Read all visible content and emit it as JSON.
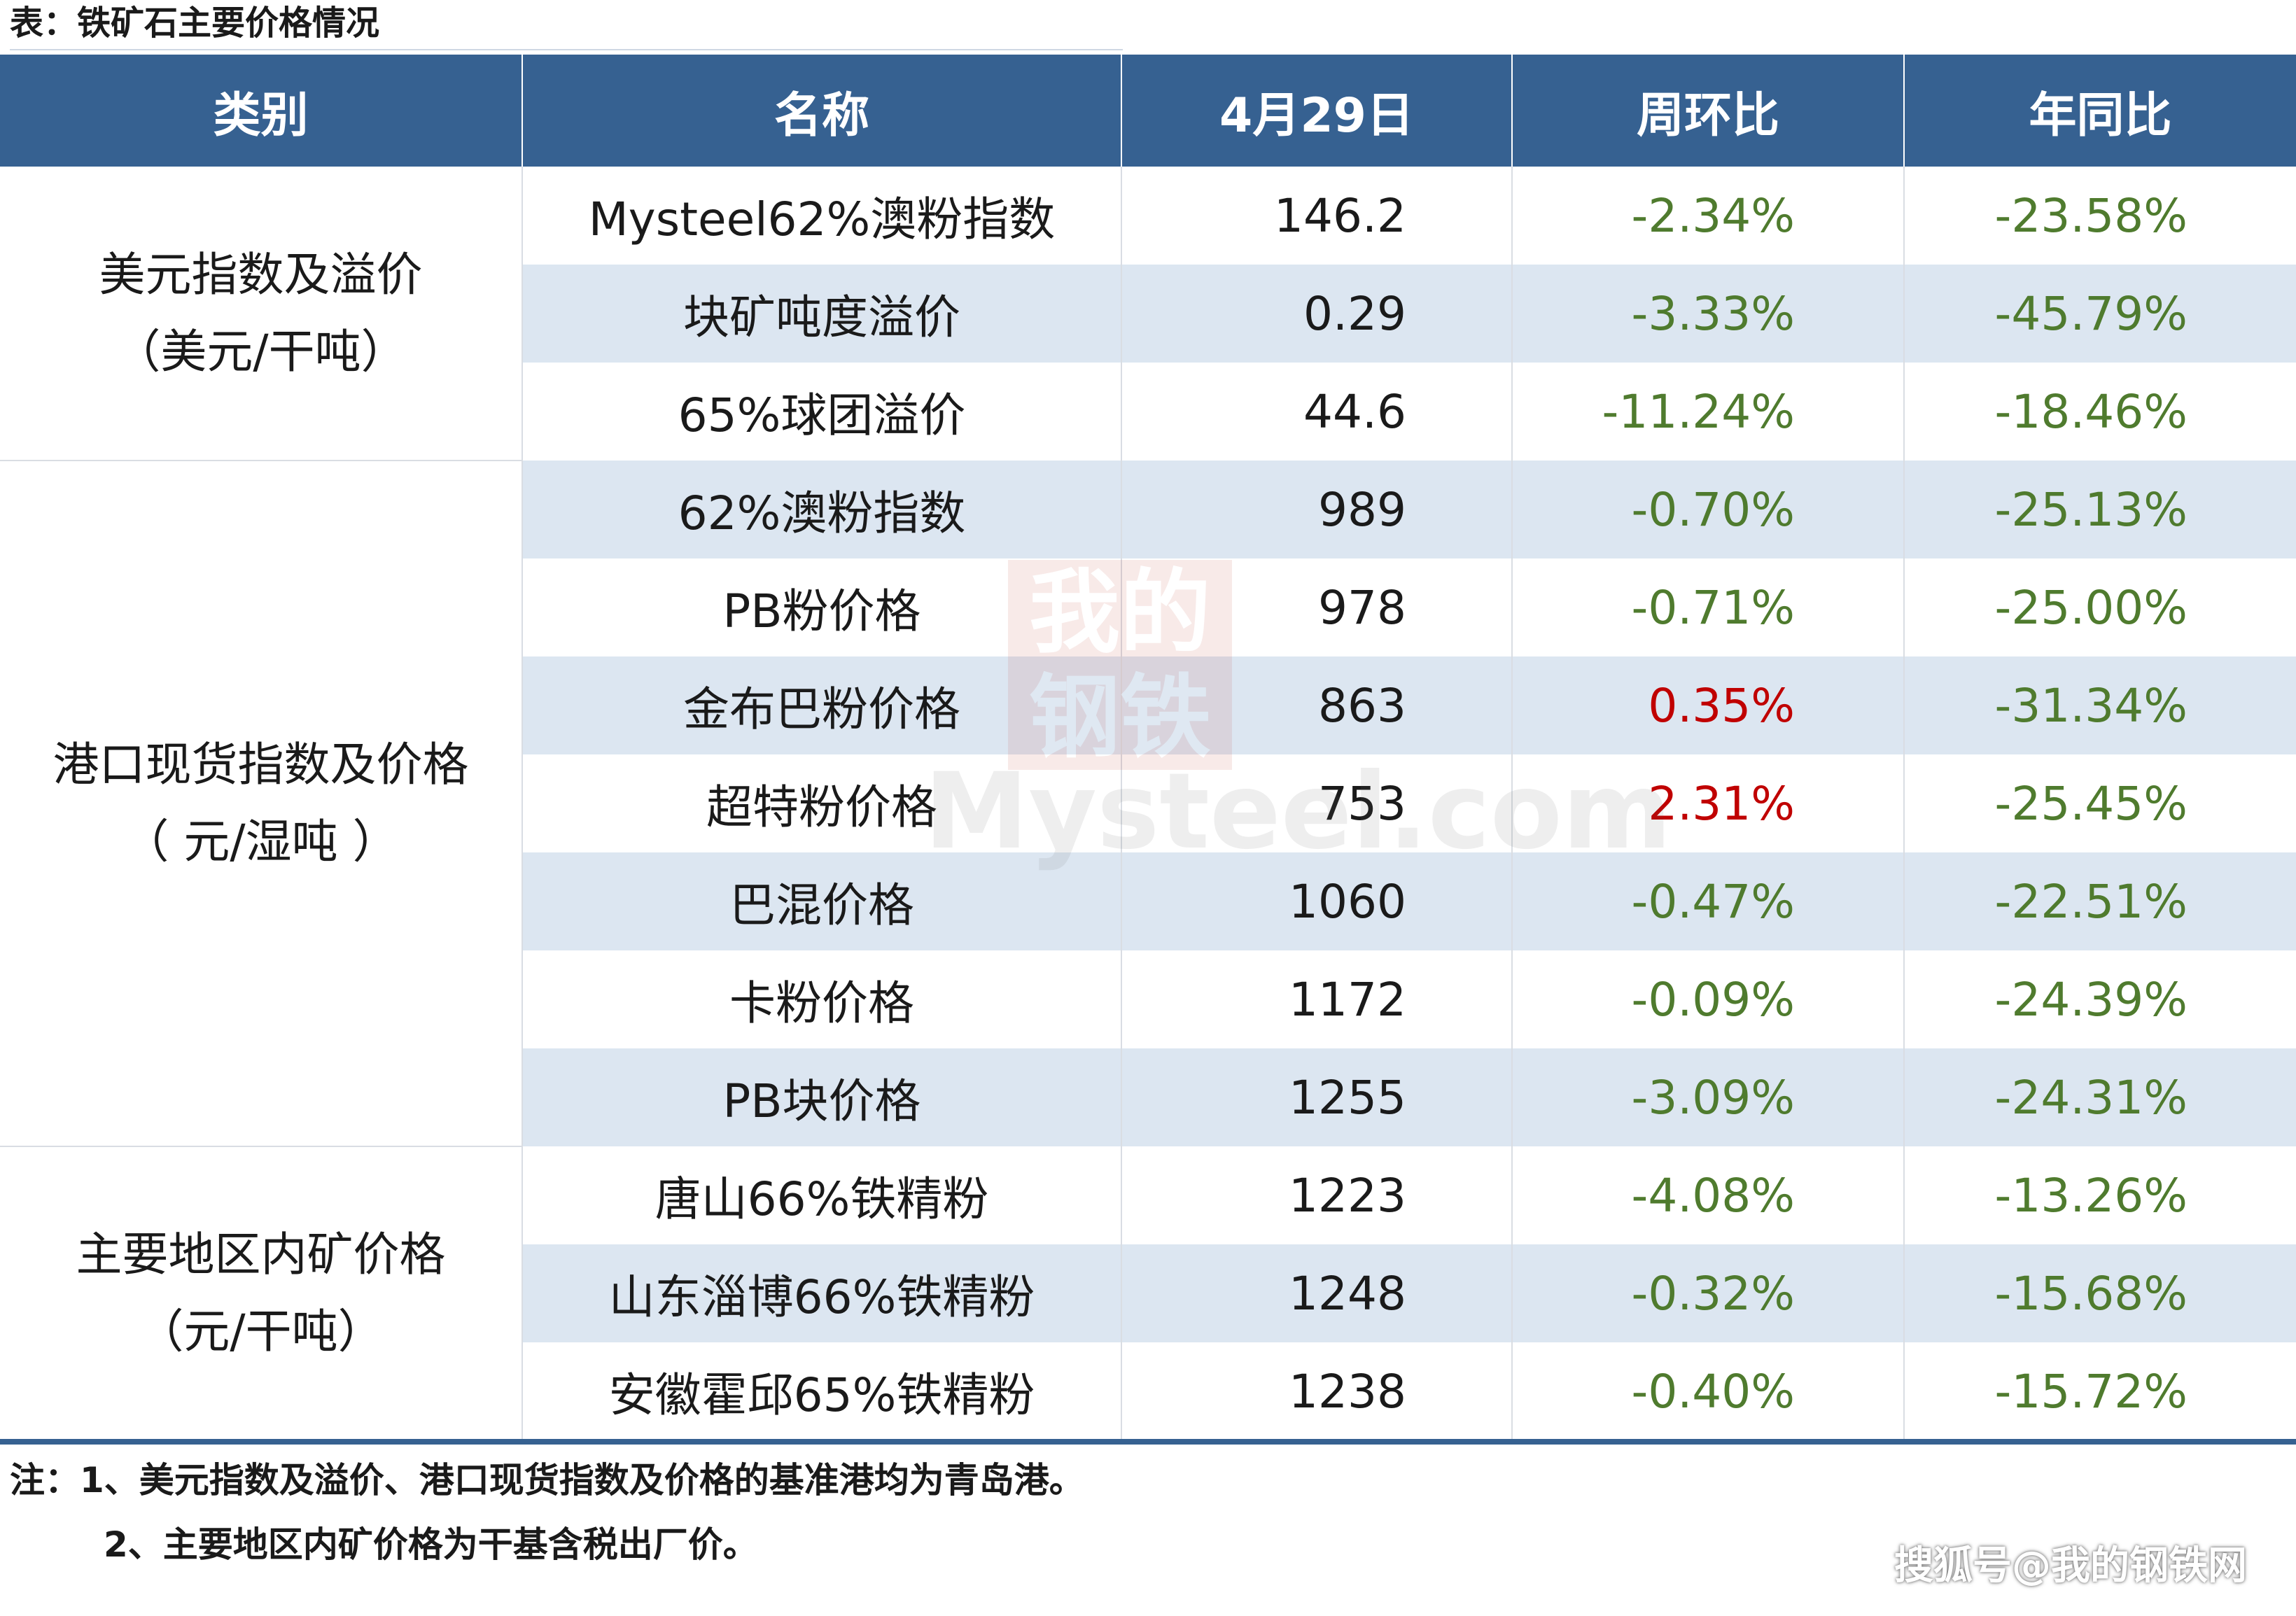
{
  "caption": "表：铁矿石主要价格情况",
  "headers": [
    "类别",
    "名称",
    "4月29日",
    "周环比",
    "年同比"
  ],
  "groups": [
    {
      "category_line1": "美元指数及溢价",
      "category_line2": "（美元/干吨）",
      "rows": [
        {
          "name": "Mysteel62%澳粉指数",
          "value": "146.2",
          "wow": "-2.34%",
          "yoy": "-23.58%"
        },
        {
          "name": "块矿吨度溢价",
          "value": "0.29",
          "wow": "-3.33%",
          "yoy": "-45.79%"
        },
        {
          "name": "65%球团溢价",
          "value": "44.6",
          "wow": "-11.24%",
          "yoy": "-18.46%"
        }
      ]
    },
    {
      "category_line1": "港口现货指数及价格",
      "category_line2": "（ 元/湿吨 ）",
      "rows": [
        {
          "name": "62%澳粉指数",
          "value": "989",
          "wow": "-0.70%",
          "yoy": "-25.13%"
        },
        {
          "name": "PB粉价格",
          "value": "978",
          "wow": "-0.71%",
          "yoy": "-25.00%"
        },
        {
          "name": "金布巴粉价格",
          "value": "863",
          "wow": "0.35%",
          "yoy": "-31.34%"
        },
        {
          "name": "超特粉价格",
          "value": "753",
          "wow": "2.31%",
          "yoy": "-25.45%"
        },
        {
          "name": "巴混价格",
          "value": "1060",
          "wow": "-0.47%",
          "yoy": "-22.51%"
        },
        {
          "name": "卡粉价格",
          "value": "1172",
          "wow": "-0.09%",
          "yoy": "-24.39%"
        },
        {
          "name": "PB块价格",
          "value": "1255",
          "wow": "-3.09%",
          "yoy": "-24.31%"
        }
      ]
    },
    {
      "category_line1": "主要地区内矿价格",
      "category_line2": "（元/干吨）",
      "rows": [
        {
          "name": "唐山66%铁精粉",
          "value": "1223",
          "wow": "-4.08%",
          "yoy": "-13.26%"
        },
        {
          "name": "山东淄博66%铁精粉",
          "value": "1248",
          "wow": "-0.32%",
          "yoy": "-15.68%"
        },
        {
          "name": "安徽霍邱65%铁精粉",
          "value": "1238",
          "wow": "-0.40%",
          "yoy": "-15.72%"
        }
      ]
    }
  ],
  "notes": [
    "注：1、美元指数及溢价、港口现货指数及价格的基准港均为青岛港。",
    "2、主要地区内矿价格为干基含税出厂价。"
  ],
  "watermark": {
    "line1": "我的",
    "line2": "钢铁",
    "line3": "Mysteel.com"
  },
  "credit": "搜狐号@我的钢铁网",
  "colors": {
    "header_bg": "#366191",
    "row_shade": "#dce6f1",
    "negative": "#4f7b2e",
    "positive": "#c00000"
  }
}
